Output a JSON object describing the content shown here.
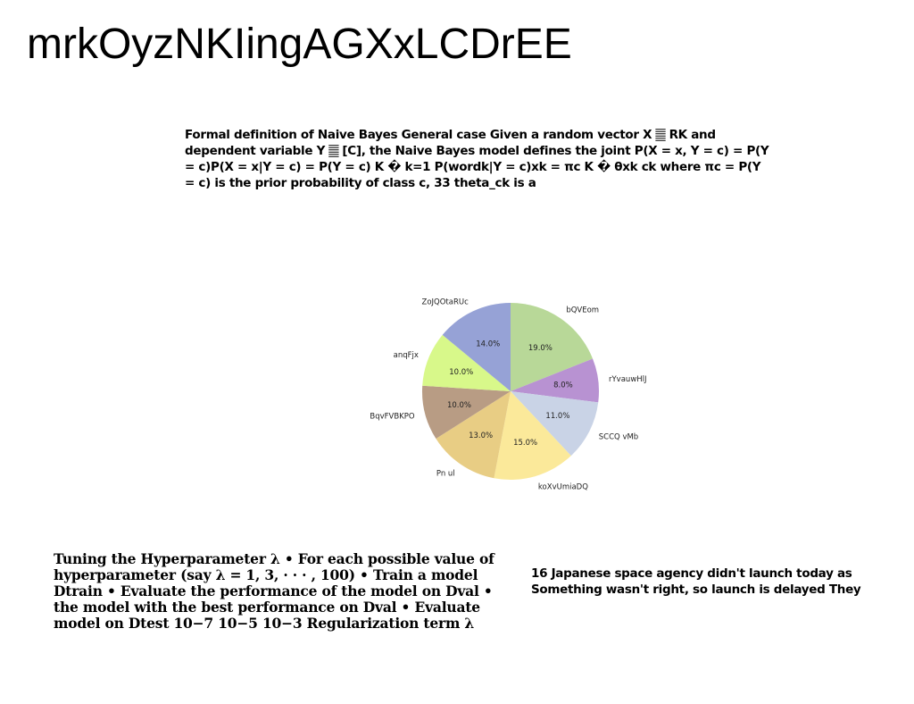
{
  "title": "mrkOyzNKIingAGXxLCDrEE",
  "paragraph_top": "Formal definition of Naive Bayes General case Given a random vector X 𝄛 RK and dependent variable Y 𝄛 [C], the Naive Bayes model defines the joint P(X = x, Y = c) = P(Y = c)P(X = x|Y = c) = P(Y = c) K � k=1 P(wordk|Y = c)xk = πc K � θxk ck where πc = P(Y = c) is the prior probability of class c, 33 theta_ck is a",
  "paragraph_left": "Tuning the Hyperparameter λ • For each possible value of hyperparameter (say λ = 1, 3, · · · , 100) • Train a model Dtrain • Evaluate the performance of the model on Dval • the model with the best performance on Dval • Evaluate model on Dtest 10−7 10−5 10−3 Regularization term λ",
  "paragraph_right_lines": [
    "16 Japanese space agency didn't launch today as",
    "Something wasn't right, so launch is delayed They"
  ],
  "chart_data": {
    "type": "pie",
    "start": "top, clockwise",
    "slices": [
      {
        "label": "bQVEom",
        "value": 19.0,
        "pct_label": "19.0%",
        "color": "#b8d898"
      },
      {
        "label": "rYvauwHlJ",
        "value": 8.0,
        "pct_label": "8.0%",
        "color": "#b892d2"
      },
      {
        "label": "SCCQ vMb",
        "value": 11.0,
        "pct_label": "11.0%",
        "color": "#c9d3e6"
      },
      {
        "label": "koXvUmiaDQ",
        "value": 15.0,
        "pct_label": "15.0%",
        "color": "#fbe99a"
      },
      {
        "label": "Pn ul",
        "value": 13.0,
        "pct_label": "13.0%",
        "color": "#e8cd84"
      },
      {
        "label": "BqvFVBKPO",
        "value": 10.0,
        "pct_label": "10.0%",
        "color": "#b89c84"
      },
      {
        "label": "anqFjx",
        "value": 10.0,
        "pct_label": "10.0%",
        "color": "#d8f88a"
      },
      {
        "label": "ZoJQOtaRUc",
        "value": 14.0,
        "pct_label": "14.0%",
        "color": "#96a2d6"
      }
    ]
  }
}
